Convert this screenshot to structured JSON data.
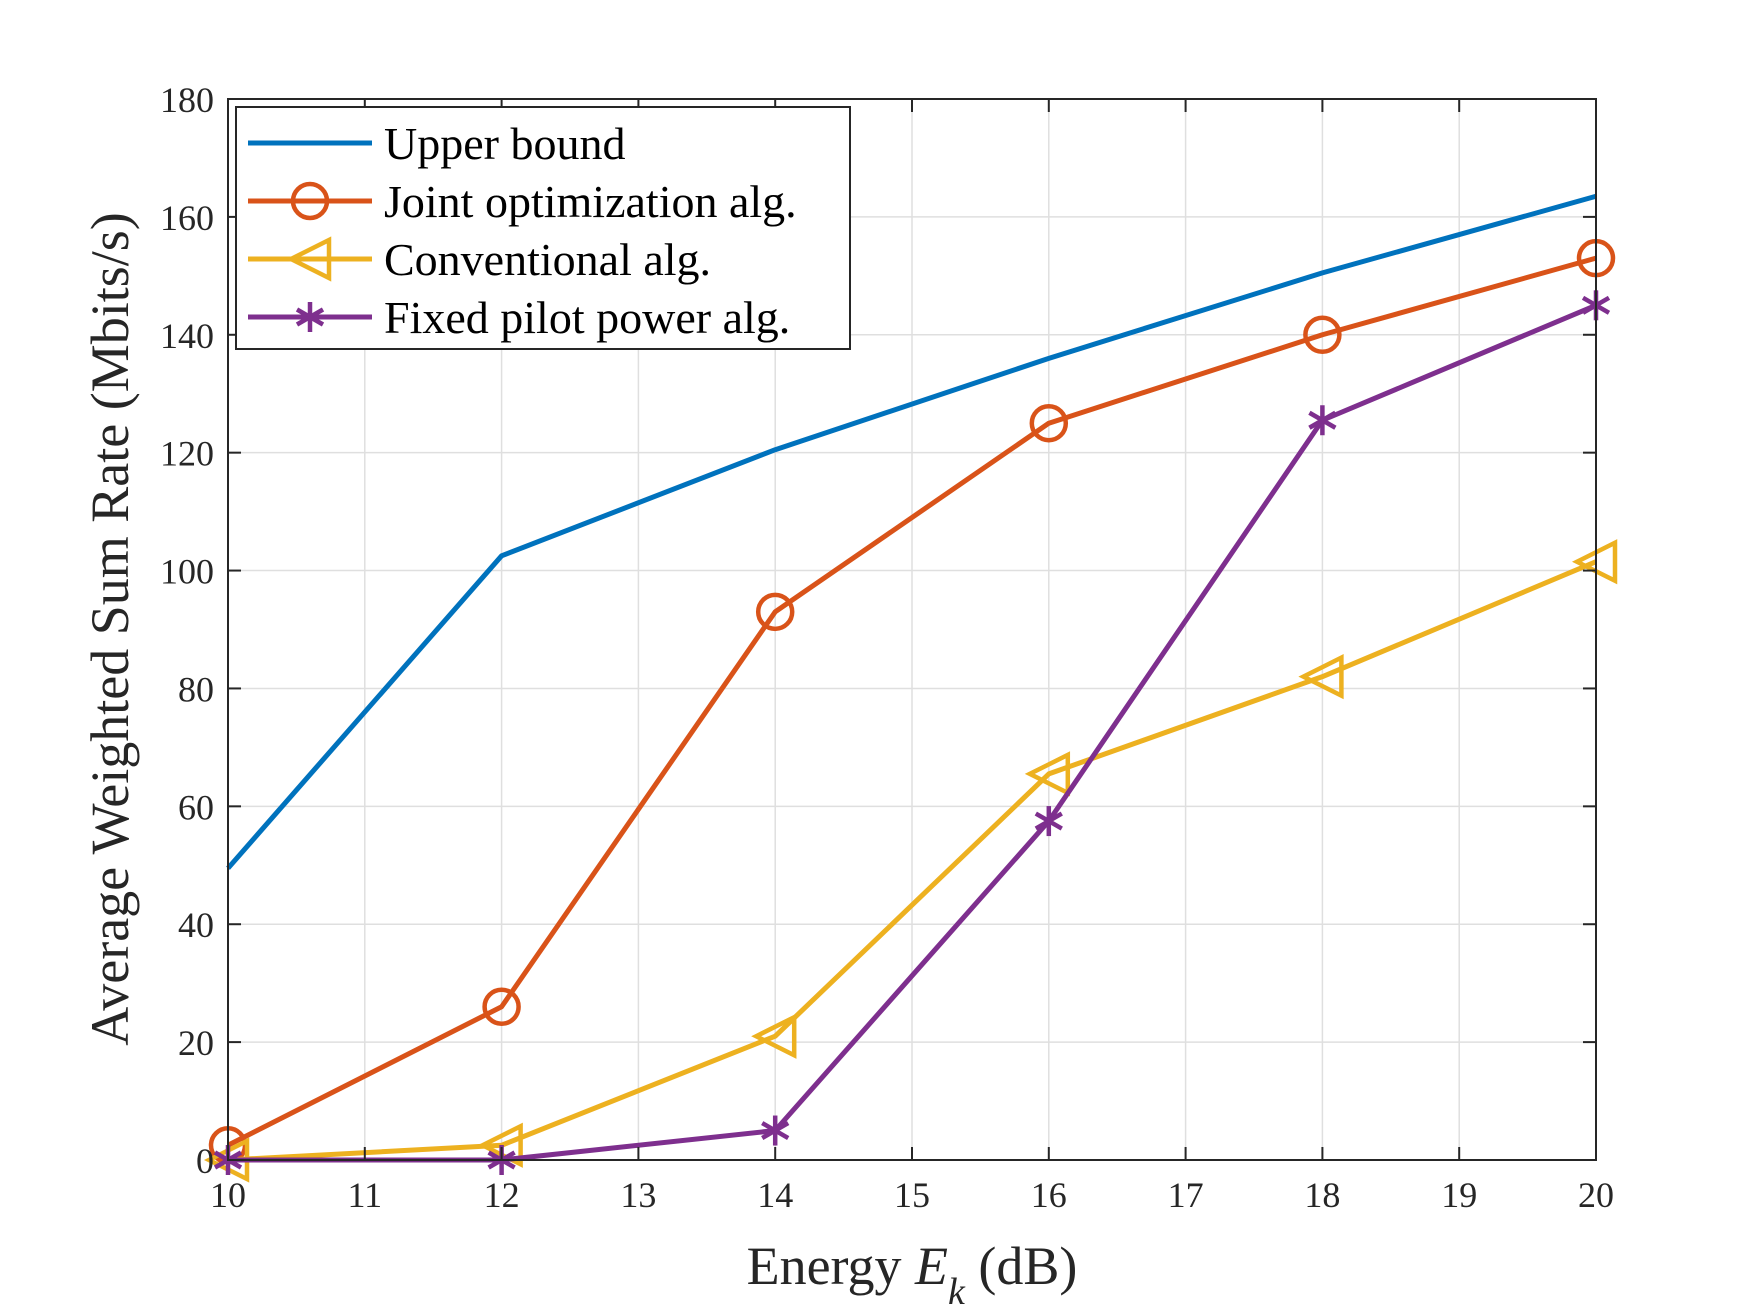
{
  "chart_data": {
    "type": "line",
    "title": "",
    "xlabel_prefix": "Energy ",
    "xlabel_var": "E",
    "xlabel_sub": "k",
    "xlabel_suffix": " (dB)",
    "ylabel": "Average Weighted Sum Rate (Mbits/s)",
    "xlim": [
      10,
      20
    ],
    "ylim": [
      0,
      180
    ],
    "xticks": [
      10,
      11,
      12,
      13,
      14,
      15,
      16,
      17,
      18,
      19,
      20
    ],
    "yticks": [
      0,
      20,
      40,
      60,
      80,
      100,
      120,
      140,
      160,
      180
    ],
    "grid": true,
    "legend_position": "top-left",
    "series": [
      {
        "name": "Upper bound",
        "color": "#0072BD",
        "marker": "none",
        "x": [
          10,
          12,
          14,
          16,
          18,
          20
        ],
        "values": [
          49.5,
          102.5,
          120.5,
          136,
          150.5,
          163.5
        ]
      },
      {
        "name": "Joint optimization alg.",
        "color": "#D95319",
        "marker": "circle",
        "x": [
          10,
          12,
          14,
          16,
          18,
          20
        ],
        "values": [
          2.5,
          26,
          93,
          125,
          140,
          153
        ]
      },
      {
        "name": "Conventional alg.",
        "color": "#EDB120",
        "marker": "triangle-left",
        "x": [
          10,
          12,
          14,
          16,
          18,
          20
        ],
        "values": [
          0,
          2.5,
          21,
          65.5,
          82,
          101.5
        ]
      },
      {
        "name": "Fixed pilot power alg.",
        "color": "#7E2F8E",
        "marker": "asterisk",
        "x": [
          10,
          12,
          14,
          16,
          18,
          20
        ],
        "values": [
          0,
          0,
          5,
          57.5,
          125.5,
          145
        ]
      }
    ]
  }
}
